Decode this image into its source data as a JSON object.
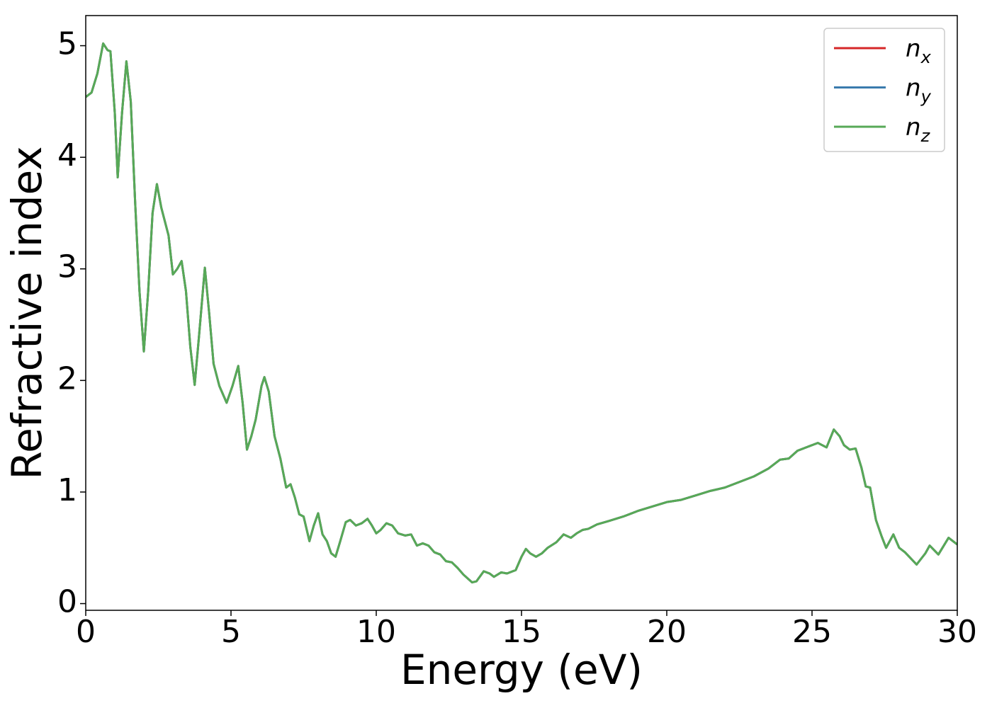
{
  "chart_data": {
    "type": "line",
    "xlabel": "Energy (eV)",
    "ylabel": "Refractive index",
    "xlim": [
      0,
      30
    ],
    "ylim": [
      -0.06,
      5.27
    ],
    "xticks": [
      0,
      5,
      10,
      15,
      20,
      25,
      30
    ],
    "yticks": [
      0,
      1,
      2,
      3,
      4,
      5
    ],
    "legend": "upper right",
    "x": [
      0,
      0.2,
      0.4,
      0.6,
      0.75,
      0.85,
      1.0,
      1.1,
      1.25,
      1.4,
      1.55,
      1.7,
      1.85,
      2.0,
      2.15,
      2.3,
      2.45,
      2.6,
      2.75,
      2.85,
      3.0,
      3.15,
      3.3,
      3.45,
      3.6,
      3.75,
      3.9,
      4.1,
      4.25,
      4.4,
      4.6,
      4.85,
      5.05,
      5.25,
      5.4,
      5.55,
      5.7,
      5.85,
      6.05,
      6.15,
      6.3,
      6.5,
      6.7,
      6.9,
      7.05,
      7.2,
      7.35,
      7.5,
      7.7,
      7.85,
      8.0,
      8.15,
      8.3,
      8.45,
      8.6,
      8.75,
      8.95,
      9.1,
      9.3,
      9.5,
      9.7,
      9.85,
      10.0,
      10.15,
      10.35,
      10.55,
      10.75,
      11.0,
      11.2,
      11.4,
      11.6,
      11.8,
      12.0,
      12.2,
      12.4,
      12.6,
      12.8,
      13.0,
      13.3,
      13.45,
      13.7,
      13.9,
      14.05,
      14.3,
      14.5,
      14.8,
      15.0,
      15.15,
      15.3,
      15.5,
      15.7,
      15.9,
      16.2,
      16.45,
      16.7,
      16.9,
      17.1,
      17.3,
      17.6,
      18.0,
      18.5,
      19.0,
      19.5,
      20.0,
      20.5,
      21.0,
      21.5,
      22.0,
      22.5,
      23.0,
      23.5,
      23.9,
      24.2,
      24.5,
      24.8,
      25.0,
      25.2,
      25.5,
      25.75,
      25.95,
      26.1,
      26.3,
      26.5,
      26.7,
      26.85,
      27.0,
      27.2,
      27.4,
      27.55,
      27.8,
      28.0,
      28.2,
      28.6,
      28.9,
      29.05,
      29.35,
      29.7,
      30.0
    ],
    "series": [
      {
        "name": "n_x",
        "color": "#d62728",
        "values": [
          4.54,
          4.58,
          4.75,
          5.02,
          4.96,
          4.95,
          4.4,
          3.82,
          4.4,
          4.86,
          4.5,
          3.6,
          2.8,
          2.26,
          2.8,
          3.5,
          3.76,
          3.55,
          3.4,
          3.3,
          2.95,
          3.0,
          3.07,
          2.8,
          2.3,
          1.96,
          2.4,
          3.01,
          2.6,
          2.15,
          1.95,
          1.8,
          1.95,
          2.13,
          1.8,
          1.38,
          1.5,
          1.65,
          1.95,
          2.03,
          1.9,
          1.5,
          1.3,
          1.04,
          1.07,
          0.95,
          0.8,
          0.78,
          0.56,
          0.7,
          0.81,
          0.62,
          0.56,
          0.45,
          0.42,
          0.55,
          0.73,
          0.75,
          0.7,
          0.72,
          0.76,
          0.7,
          0.63,
          0.66,
          0.72,
          0.7,
          0.63,
          0.61,
          0.62,
          0.52,
          0.54,
          0.52,
          0.46,
          0.44,
          0.38,
          0.37,
          0.32,
          0.26,
          0.19,
          0.2,
          0.29,
          0.27,
          0.24,
          0.28,
          0.27,
          0.3,
          0.42,
          0.49,
          0.45,
          0.42,
          0.45,
          0.5,
          0.55,
          0.62,
          0.59,
          0.63,
          0.66,
          0.67,
          0.71,
          0.74,
          0.78,
          0.83,
          0.87,
          0.91,
          0.93,
          0.97,
          1.01,
          1.04,
          1.09,
          1.14,
          1.21,
          1.29,
          1.3,
          1.37,
          1.4,
          1.42,
          1.44,
          1.4,
          1.56,
          1.5,
          1.42,
          1.38,
          1.39,
          1.22,
          1.05,
          1.04,
          0.75,
          0.6,
          0.5,
          0.62,
          0.5,
          0.46,
          0.35,
          0.45,
          0.52,
          0.44,
          0.59,
          0.53
        ]
      },
      {
        "name": "n_y",
        "color": "#3a7bad",
        "values": [
          4.54,
          4.58,
          4.75,
          5.02,
          4.96,
          4.95,
          4.4,
          3.82,
          4.4,
          4.86,
          4.5,
          3.6,
          2.8,
          2.26,
          2.8,
          3.5,
          3.76,
          3.55,
          3.4,
          3.3,
          2.95,
          3.0,
          3.07,
          2.8,
          2.3,
          1.96,
          2.4,
          3.01,
          2.6,
          2.15,
          1.95,
          1.8,
          1.95,
          2.13,
          1.8,
          1.38,
          1.5,
          1.65,
          1.95,
          2.03,
          1.9,
          1.5,
          1.3,
          1.04,
          1.07,
          0.95,
          0.8,
          0.78,
          0.56,
          0.7,
          0.81,
          0.62,
          0.56,
          0.45,
          0.42,
          0.55,
          0.73,
          0.75,
          0.7,
          0.72,
          0.76,
          0.7,
          0.63,
          0.66,
          0.72,
          0.7,
          0.63,
          0.61,
          0.62,
          0.52,
          0.54,
          0.52,
          0.46,
          0.44,
          0.38,
          0.37,
          0.32,
          0.26,
          0.19,
          0.2,
          0.29,
          0.27,
          0.24,
          0.28,
          0.27,
          0.3,
          0.42,
          0.49,
          0.45,
          0.42,
          0.45,
          0.5,
          0.55,
          0.62,
          0.59,
          0.63,
          0.66,
          0.67,
          0.71,
          0.74,
          0.78,
          0.83,
          0.87,
          0.91,
          0.93,
          0.97,
          1.01,
          1.04,
          1.09,
          1.14,
          1.21,
          1.29,
          1.3,
          1.37,
          1.4,
          1.42,
          1.44,
          1.4,
          1.56,
          1.5,
          1.42,
          1.38,
          1.39,
          1.22,
          1.05,
          1.04,
          0.75,
          0.6,
          0.5,
          0.62,
          0.5,
          0.46,
          0.35,
          0.45,
          0.52,
          0.44,
          0.59,
          0.53
        ]
      },
      {
        "name": "n_z",
        "color": "#57a957",
        "values": [
          4.54,
          4.58,
          4.75,
          5.02,
          4.96,
          4.95,
          4.4,
          3.82,
          4.4,
          4.86,
          4.5,
          3.6,
          2.8,
          2.26,
          2.8,
          3.5,
          3.76,
          3.55,
          3.4,
          3.3,
          2.95,
          3.0,
          3.07,
          2.8,
          2.3,
          1.96,
          2.4,
          3.01,
          2.6,
          2.15,
          1.95,
          1.8,
          1.95,
          2.13,
          1.8,
          1.38,
          1.5,
          1.65,
          1.95,
          2.03,
          1.9,
          1.5,
          1.3,
          1.04,
          1.07,
          0.95,
          0.8,
          0.78,
          0.56,
          0.7,
          0.81,
          0.62,
          0.56,
          0.45,
          0.42,
          0.55,
          0.73,
          0.75,
          0.7,
          0.72,
          0.76,
          0.7,
          0.63,
          0.66,
          0.72,
          0.7,
          0.63,
          0.61,
          0.62,
          0.52,
          0.54,
          0.52,
          0.46,
          0.44,
          0.38,
          0.37,
          0.32,
          0.26,
          0.19,
          0.2,
          0.29,
          0.27,
          0.24,
          0.28,
          0.27,
          0.3,
          0.42,
          0.49,
          0.45,
          0.42,
          0.45,
          0.5,
          0.55,
          0.62,
          0.59,
          0.63,
          0.66,
          0.67,
          0.71,
          0.74,
          0.78,
          0.83,
          0.87,
          0.91,
          0.93,
          0.97,
          1.01,
          1.04,
          1.09,
          1.14,
          1.21,
          1.29,
          1.3,
          1.37,
          1.4,
          1.42,
          1.44,
          1.4,
          1.56,
          1.5,
          1.42,
          1.38,
          1.39,
          1.22,
          1.05,
          1.04,
          0.75,
          0.6,
          0.5,
          0.62,
          0.5,
          0.46,
          0.35,
          0.45,
          0.52,
          0.44,
          0.59,
          0.53
        ]
      }
    ]
  }
}
